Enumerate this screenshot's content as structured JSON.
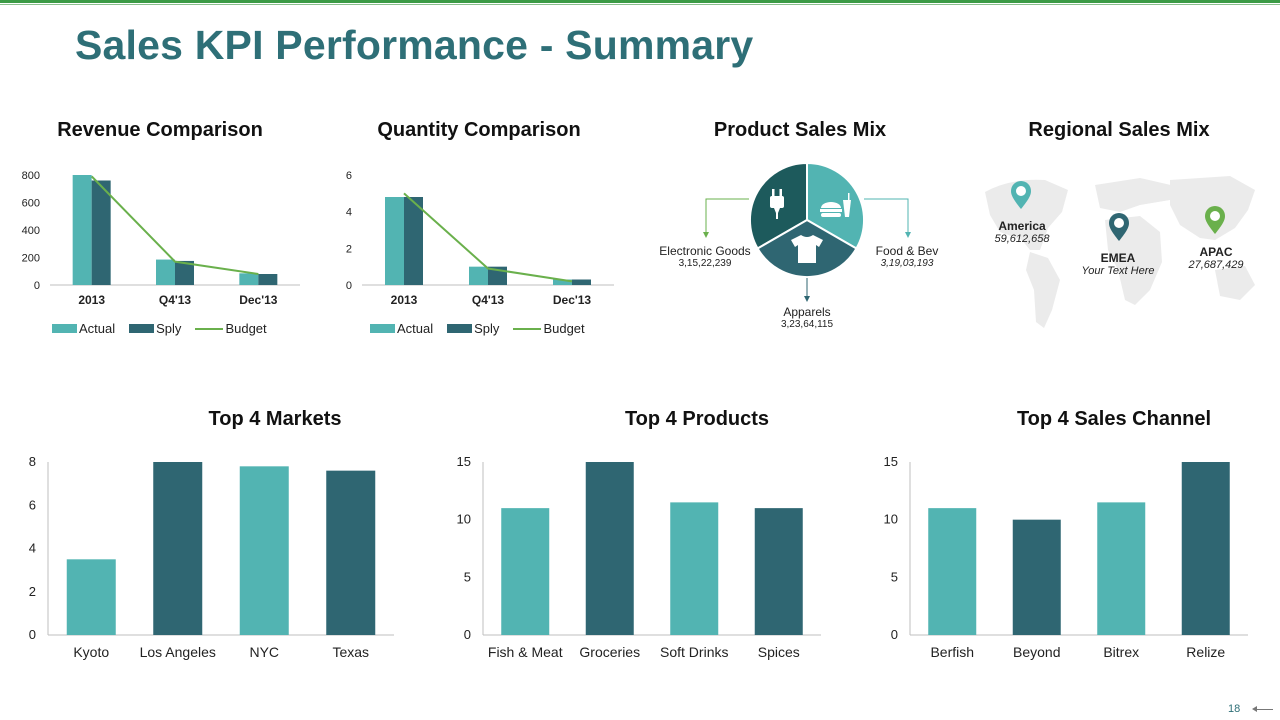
{
  "page": {
    "title": "Sales KPI Performance - Summary",
    "page_number": "18"
  },
  "colors": {
    "teal_light": "#52b4b2",
    "teal_dark": "#2f6672",
    "budget_line": "#6ab04c",
    "title": "#2e6f77",
    "top_bar": "#3c9b46"
  },
  "product_mix": {
    "title": "Product Sales Mix",
    "slices": [
      {
        "name": "Electronic Goods",
        "value": "3,15,22,239",
        "icon": "plug-icon"
      },
      {
        "name": "Food & Bev",
        "value": "3,19,03,193",
        "icon": "food-icon"
      },
      {
        "name": "Apparels",
        "value": "3,23,64,115",
        "icon": "tshirt-icon"
      }
    ]
  },
  "regional_mix": {
    "title": "Regional Sales Mix",
    "regions": [
      {
        "name": "America",
        "value": "59,612,658",
        "icon": "map-pin-icon"
      },
      {
        "name": "EMEA",
        "value": "Your Text Here",
        "icon": "map-pin-icon"
      },
      {
        "name": "APAC",
        "value": "27,687,429",
        "icon": "map-pin-icon"
      }
    ]
  },
  "chart_data": [
    {
      "id": "revenue",
      "type": "bar",
      "title": "Revenue Comparison",
      "categories": [
        "2013",
        "Q4'13",
        "Dec'13"
      ],
      "series": [
        {
          "name": "Actual",
          "kind": "bar",
          "values": [
            800,
            185,
            85
          ]
        },
        {
          "name": "Sply",
          "kind": "bar",
          "values": [
            760,
            175,
            80
          ]
        },
        {
          "name": "Budget",
          "kind": "line",
          "values": [
            790,
            170,
            80
          ]
        }
      ],
      "ylim": [
        0,
        800
      ],
      "yticks": [
        0,
        200,
        400,
        600,
        800
      ],
      "legend": "bottom",
      "grid": false
    },
    {
      "id": "quantity",
      "type": "bar",
      "title": "Quantity Comparison",
      "categories": [
        "2013",
        "Q4'13",
        "Dec'13"
      ],
      "series": [
        {
          "name": "Actual",
          "kind": "bar",
          "values": [
            4.8,
            1.0,
            0.3
          ]
        },
        {
          "name": "Sply",
          "kind": "bar",
          "values": [
            4.8,
            1.0,
            0.3
          ]
        },
        {
          "name": "Budget",
          "kind": "line",
          "values": [
            5.0,
            0.9,
            0.2
          ]
        }
      ],
      "ylim": [
        0,
        6
      ],
      "yticks": [
        0,
        2,
        4,
        6
      ],
      "legend": "bottom",
      "grid": false
    },
    {
      "id": "markets",
      "type": "bar",
      "title": "Top 4 Markets",
      "categories": [
        "Kyoto",
        "Los Angeles",
        "NYC",
        "Texas"
      ],
      "values": [
        3.5,
        8.0,
        7.8,
        7.6
      ],
      "ylim": [
        0,
        8
      ],
      "yticks": [
        0,
        2,
        4,
        6,
        8
      ],
      "grid": false
    },
    {
      "id": "products",
      "type": "bar",
      "title": "Top 4 Products",
      "categories": [
        "Fish & Meat",
        "Groceries",
        "Soft Drinks",
        "Spices"
      ],
      "values": [
        11,
        15,
        11.5,
        11
      ],
      "ylim": [
        0,
        15
      ],
      "yticks": [
        0,
        5,
        10,
        15
      ],
      "grid": false
    },
    {
      "id": "channels",
      "type": "bar",
      "title": "Top 4 Sales Channel",
      "categories": [
        "Berfish",
        "Beyond",
        "Bitrex",
        "Relize"
      ],
      "values": [
        11,
        10,
        11.5,
        15
      ],
      "ylim": [
        0,
        15
      ],
      "yticks": [
        0,
        5,
        10,
        15
      ],
      "grid": false
    }
  ]
}
